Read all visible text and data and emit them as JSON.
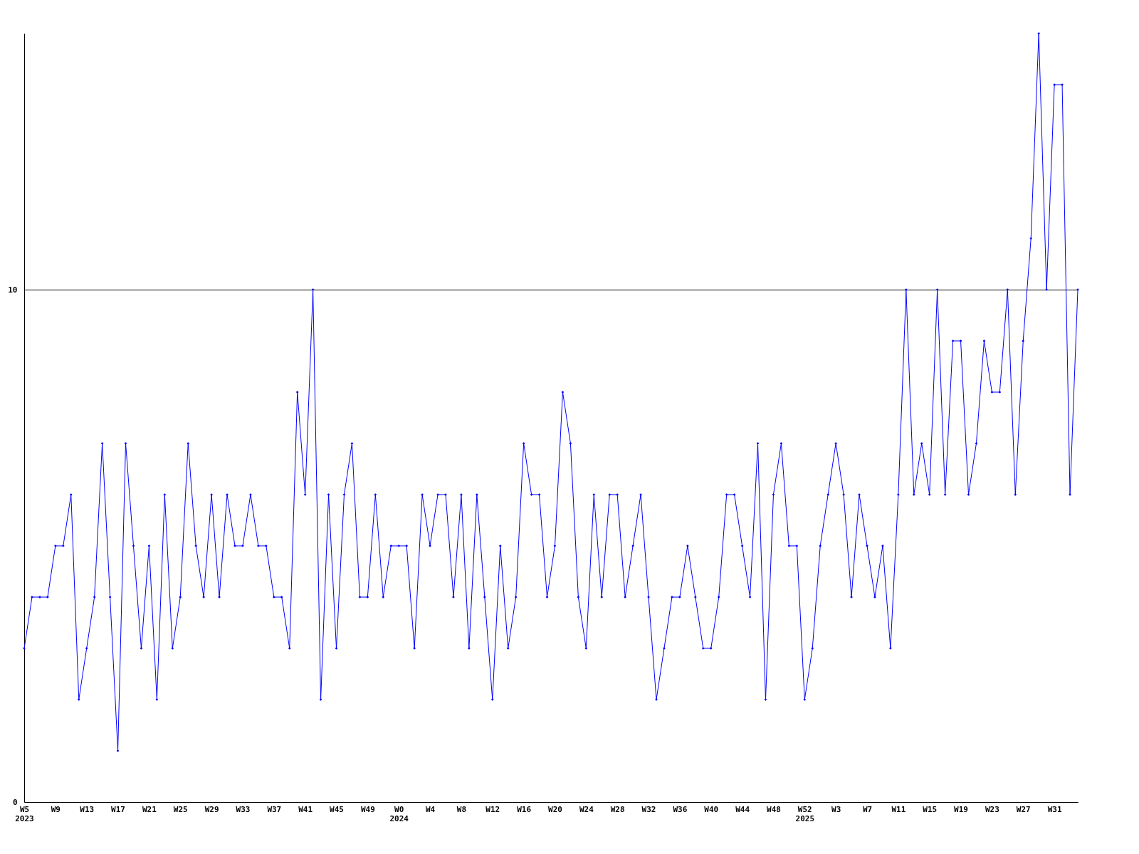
{
  "chart_data": {
    "type": "line",
    "categories": [
      "W5\n2023",
      null,
      null,
      null,
      "W9",
      null,
      null,
      null,
      "W13",
      null,
      null,
      null,
      "W17",
      null,
      null,
      null,
      "W21",
      null,
      null,
      null,
      "W25",
      null,
      null,
      null,
      "W29",
      null,
      null,
      null,
      "W33",
      null,
      null,
      null,
      "W37",
      null,
      null,
      null,
      "W41",
      null,
      null,
      null,
      "W45",
      null,
      null,
      null,
      "W49",
      null,
      null,
      null,
      "W0\n2024",
      null,
      null,
      null,
      "W4",
      null,
      null,
      null,
      "W8",
      null,
      null,
      null,
      "W12",
      null,
      null,
      null,
      "W16",
      null,
      null,
      null,
      "W20",
      null,
      null,
      null,
      "W24",
      null,
      null,
      null,
      "W28",
      null,
      null,
      null,
      "W32",
      null,
      null,
      null,
      "W36",
      null,
      null,
      null,
      "W40",
      null,
      null,
      null,
      "W44",
      null,
      null,
      null,
      "W48",
      null,
      null,
      null,
      "W52\n2025",
      null,
      null,
      null,
      "W3",
      null,
      null,
      null,
      "W7",
      null,
      null,
      null,
      "W11",
      null,
      null,
      null,
      "W15",
      null,
      null,
      null,
      "W19",
      null,
      null,
      null,
      "W23",
      null,
      null,
      null,
      "W27",
      null,
      null,
      null,
      "W31",
      null,
      null,
      null
    ],
    "series": [
      {
        "color": "#0000ff",
        "values": [
          3,
          4,
          4,
          4,
          5,
          5,
          6,
          2,
          3,
          4,
          7,
          4,
          1,
          7,
          5,
          3,
          5,
          2,
          6,
          3,
          4,
          7,
          5,
          4,
          6,
          4,
          6,
          5,
          5,
          6,
          5,
          5,
          4,
          4,
          3,
          8,
          6,
          10,
          2,
          6,
          3,
          6,
          7,
          4,
          4,
          6,
          4,
          5,
          5,
          5,
          3,
          6,
          5,
          6,
          6,
          4,
          6,
          3,
          6,
          4,
          2,
          5,
          3,
          4,
          7,
          6,
          6,
          4,
          5,
          8,
          7,
          4,
          3,
          6,
          4,
          6,
          6,
          4,
          5,
          6,
          4,
          2,
          3,
          4,
          4,
          5,
          4,
          3,
          3,
          4,
          6,
          6,
          5,
          4,
          7,
          2,
          6,
          7,
          5,
          5,
          2,
          3,
          5,
          6,
          7,
          6,
          4,
          6,
          5,
          4,
          5,
          3,
          6,
          10,
          6,
          7,
          6,
          10,
          6,
          9,
          9,
          6,
          7,
          9,
          8,
          8,
          10,
          6,
          9,
          11,
          15,
          10,
          14,
          14,
          6,
          10
        ]
      }
    ],
    "ylim": [
      0,
      15
    ],
    "yticks": [
      0,
      10
    ],
    "grid": "y",
    "marker": "diamond",
    "line_style": "solid"
  }
}
